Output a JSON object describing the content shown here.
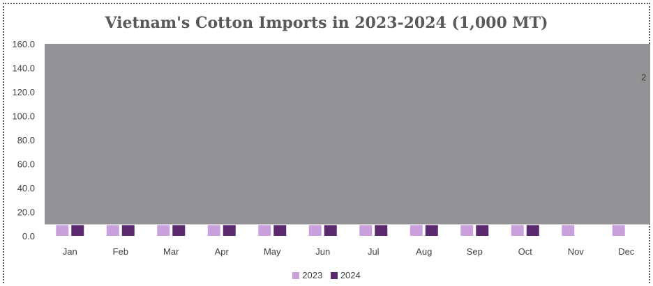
{
  "chart_data": {
    "type": "bar",
    "title": "Vietnam's Cotton Imports in 2023-2024 (1,000 MT)",
    "xlabel": "",
    "ylabel": "",
    "ylim": [
      0,
      160
    ],
    "yticks": [
      "0.0",
      "20.0",
      "40.0",
      "60.0",
      "80.0",
      "100.0",
      "120.0",
      "140.0",
      "160.0"
    ],
    "categories": [
      "Jan",
      "Feb",
      "Mar",
      "Apr",
      "May",
      "Jun",
      "Jul",
      "Aug",
      "Sep",
      "Oct",
      "Nov",
      "Dec"
    ],
    "series": [
      {
        "name": "2023",
        "color": "#c9a0dc",
        "values": [
          9,
          9,
          9,
          9,
          9,
          9,
          9,
          9,
          9,
          9,
          9,
          9
        ]
      },
      {
        "name": "2024",
        "color": "#5b2a6e",
        "values": [
          9,
          9,
          9,
          9,
          9,
          9,
          9,
          9,
          9,
          9,
          null,
          null
        ]
      }
    ],
    "overlay_color": "#939396",
    "stray_label": "2",
    "grid": false,
    "legend_position": "bottom"
  }
}
